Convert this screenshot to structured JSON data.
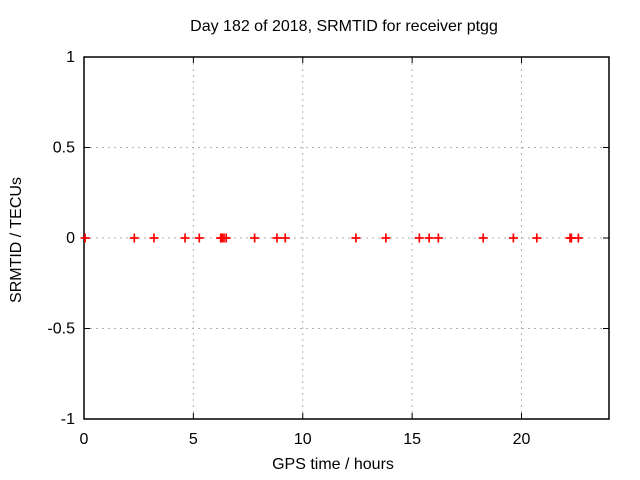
{
  "chart_data": {
    "type": "scatter",
    "title": "Day 182 of 2018, SRMTID for receiver ptgg",
    "xlabel": "GPS time / hours",
    "ylabel": "SRMTID / TECUs",
    "xlim": [
      0,
      24
    ],
    "ylim": [
      -1,
      1
    ],
    "xticks": [
      0,
      5,
      10,
      15,
      20
    ],
    "yticks": [
      -1,
      -0.5,
      0,
      0.5,
      1
    ],
    "grid": "dashed-gray",
    "grid_color": "#b0b0b0",
    "border_color": "#000000",
    "legend": "none",
    "marker": "plus",
    "marker_color": "#ff0000",
    "series": [
      {
        "name": "SRMTID",
        "x": [
          0.05,
          2.3,
          3.2,
          4.62,
          5.27,
          6.25,
          6.32,
          6.4,
          6.5,
          7.8,
          8.82,
          9.2,
          12.43,
          13.8,
          15.33,
          15.78,
          16.2,
          18.25,
          19.63,
          20.7,
          22.22,
          22.28,
          22.6
        ],
        "y": [
          0,
          0,
          0,
          0,
          0,
          0,
          0,
          0,
          0,
          0,
          0,
          0,
          0,
          0,
          0,
          0,
          0,
          0,
          0,
          0,
          0,
          0,
          0
        ]
      }
    ]
  }
}
